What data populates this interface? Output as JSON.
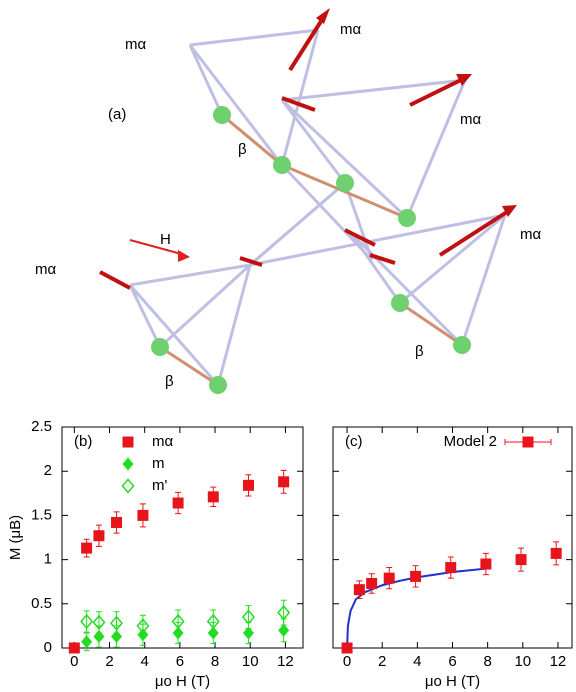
{
  "diagram": {
    "panel_label": "(a)",
    "field_label": "H",
    "moment_labels": [
      "mα",
      "mα",
      "mα",
      "mα",
      "mα"
    ],
    "bond_labels": [
      "β",
      "β",
      "β"
    ]
  },
  "chart_data": [
    {
      "type": "scatter",
      "panel_label": "(b)",
      "xlabel": "μo H (T)",
      "ylabel": "M (μB)",
      "xlim": [
        -0.7,
        13
      ],
      "ylim": [
        0,
        2.5
      ],
      "xticks": [
        0,
        2,
        4,
        6,
        8,
        10,
        12
      ],
      "yticks": [
        0,
        0.5,
        1,
        1.5,
        2,
        2.5
      ],
      "show_ytick_labels": true,
      "legend": "top-left",
      "series": [
        {
          "name": "mα",
          "color": "#e8141b",
          "marker": "square",
          "x": [
            0,
            0.7,
            1.4,
            2.4,
            3.9,
            5.9,
            7.9,
            9.9,
            11.9
          ],
          "values": [
            0,
            1.13,
            1.27,
            1.42,
            1.5,
            1.64,
            1.71,
            1.84,
            1.88
          ],
          "errors": [
            0,
            0.1,
            0.12,
            0.12,
            0.13,
            0.12,
            0.11,
            0.12,
            0.13
          ]
        },
        {
          "name": "m",
          "color": "#22dd22",
          "marker": "diamond",
          "x": [
            0.7,
            1.4,
            2.4,
            3.9,
            5.9,
            7.9,
            9.9,
            11.9
          ],
          "values": [
            0.07,
            0.13,
            0.13,
            0.15,
            0.17,
            0.17,
            0.17,
            0.2
          ],
          "errors": [
            0.1,
            0.12,
            0.12,
            0.12,
            0.12,
            0.12,
            0.12,
            0.13
          ]
        },
        {
          "name": "m'",
          "color": "#22dd22",
          "marker": "diamond-open",
          "x": [
            0.7,
            1.4,
            2.4,
            3.9,
            5.9,
            7.9,
            9.9,
            11.9
          ],
          "values": [
            0.3,
            0.29,
            0.28,
            0.25,
            0.3,
            0.3,
            0.35,
            0.4
          ],
          "errors": [
            0.12,
            0.12,
            0.13,
            0.12,
            0.13,
            0.13,
            0.13,
            0.14
          ]
        }
      ]
    },
    {
      "type": "scatter",
      "panel_label": "(c)",
      "xlabel": "μo H (T)",
      "xlim": [
        -0.8,
        12.8
      ],
      "ylim": [
        0,
        2.5
      ],
      "xticks": [
        0,
        2,
        4,
        6,
        8,
        10,
        12
      ],
      "yticks": [
        0,
        0.5,
        1,
        1.5,
        2,
        2.5
      ],
      "show_ytick_labels": false,
      "legend": "top-right",
      "series": [
        {
          "name": "Model 2",
          "color": "#e8141b",
          "marker": "square",
          "x": [
            0,
            0.7,
            1.4,
            2.4,
            3.9,
            5.9,
            7.9,
            9.9,
            11.9
          ],
          "values": [
            0,
            0.66,
            0.73,
            0.79,
            0.81,
            0.91,
            0.95,
            1.0,
            1.07
          ],
          "errors": [
            0,
            0.1,
            0.11,
            0.12,
            0.12,
            0.12,
            0.12,
            0.13,
            0.13
          ]
        }
      ],
      "fit": {
        "color": "#1f2fd0",
        "x": [
          0,
          0.05,
          0.2,
          0.5,
          1,
          2,
          3,
          4,
          5,
          6,
          7,
          8
        ],
        "values": [
          0,
          0.25,
          0.42,
          0.55,
          0.63,
          0.71,
          0.76,
          0.8,
          0.83,
          0.86,
          0.88,
          0.9
        ]
      }
    }
  ]
}
